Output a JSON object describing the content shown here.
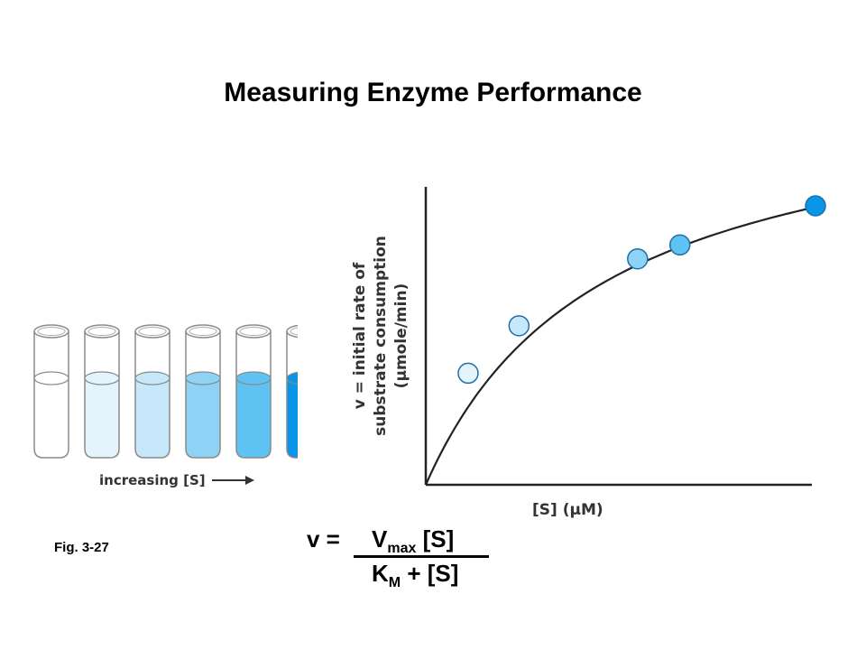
{
  "title": "Measuring Enzyme Performance",
  "figure_label": "Fig. 3-27",
  "tubes": {
    "caption": "increasing [S]",
    "fill_colors": [
      "#ffffff",
      "#e4f4fd",
      "#c6e8fa",
      "#8ed3f6",
      "#5ec2f2",
      "#0a96e8"
    ]
  },
  "graph": {
    "y_label_line1": "v = initial rate of",
    "y_label_line2": "substrate consumption",
    "y_label_line3": "(µmole/min)",
    "x_label": "[S] (µM)",
    "points": [
      {
        "s": 0.1,
        "v": 0.4,
        "color": "#e4f4fd"
      },
      {
        "s": 0.22,
        "v": 0.57,
        "color": "#c6e8fa"
      },
      {
        "s": 0.5,
        "v": 0.81,
        "color": "#8ed3f6"
      },
      {
        "s": 0.6,
        "v": 0.86,
        "color": "#5ec2f2"
      },
      {
        "s": 0.92,
        "v": 1.0,
        "color": "#0a96e8"
      }
    ]
  },
  "equation": {
    "lhs": "v =",
    "num_v": "V",
    "num_sub": "max",
    "num_rest": "[S]",
    "den_k": "K",
    "den_sub": "M",
    "den_rest": "+ [S]"
  }
}
